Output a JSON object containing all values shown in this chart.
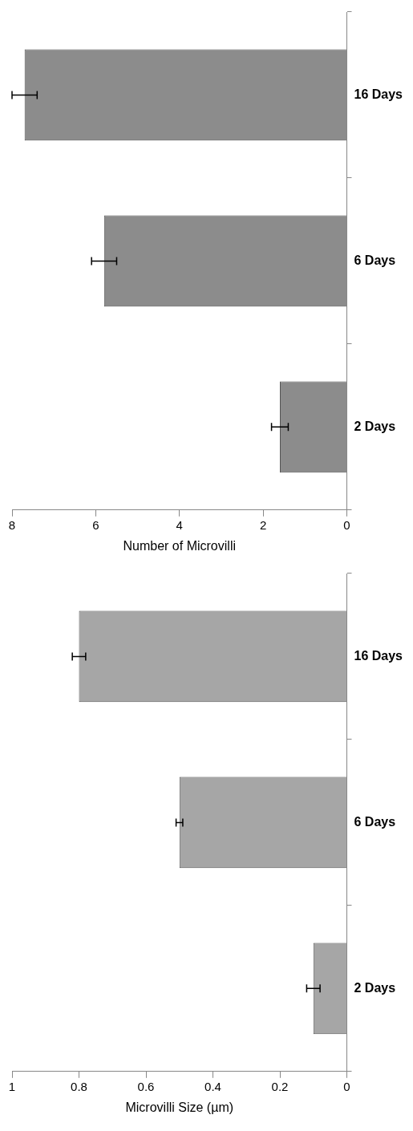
{
  "chart_data": [
    {
      "type": "bar",
      "orientation": "horizontal",
      "xlabel": "Number of Microvilli",
      "categories": [
        "16 Days",
        "6 Days",
        "2 Days"
      ],
      "values": [
        7.7,
        5.8,
        1.6
      ],
      "errors": [
        0.3,
        0.3,
        0.2
      ],
      "color": "#8c8c8c",
      "xlim": [
        8,
        0
      ],
      "xticks": [
        8,
        6,
        4,
        2,
        0
      ],
      "grid": false,
      "legend": false
    },
    {
      "type": "bar",
      "orientation": "horizontal",
      "xlabel": "Microvilli Size (µm)",
      "categories": [
        "16 Days",
        "6 Days",
        "2 Days"
      ],
      "values": [
        0.8,
        0.5,
        0.1
      ],
      "errors": [
        0.02,
        0.01,
        0.02
      ],
      "color": "#a6a6a6",
      "xlim": [
        1,
        0
      ],
      "xticks": [
        1,
        0.8,
        0.6,
        0.4,
        0.2,
        0
      ],
      "grid": false,
      "legend": false
    }
  ]
}
